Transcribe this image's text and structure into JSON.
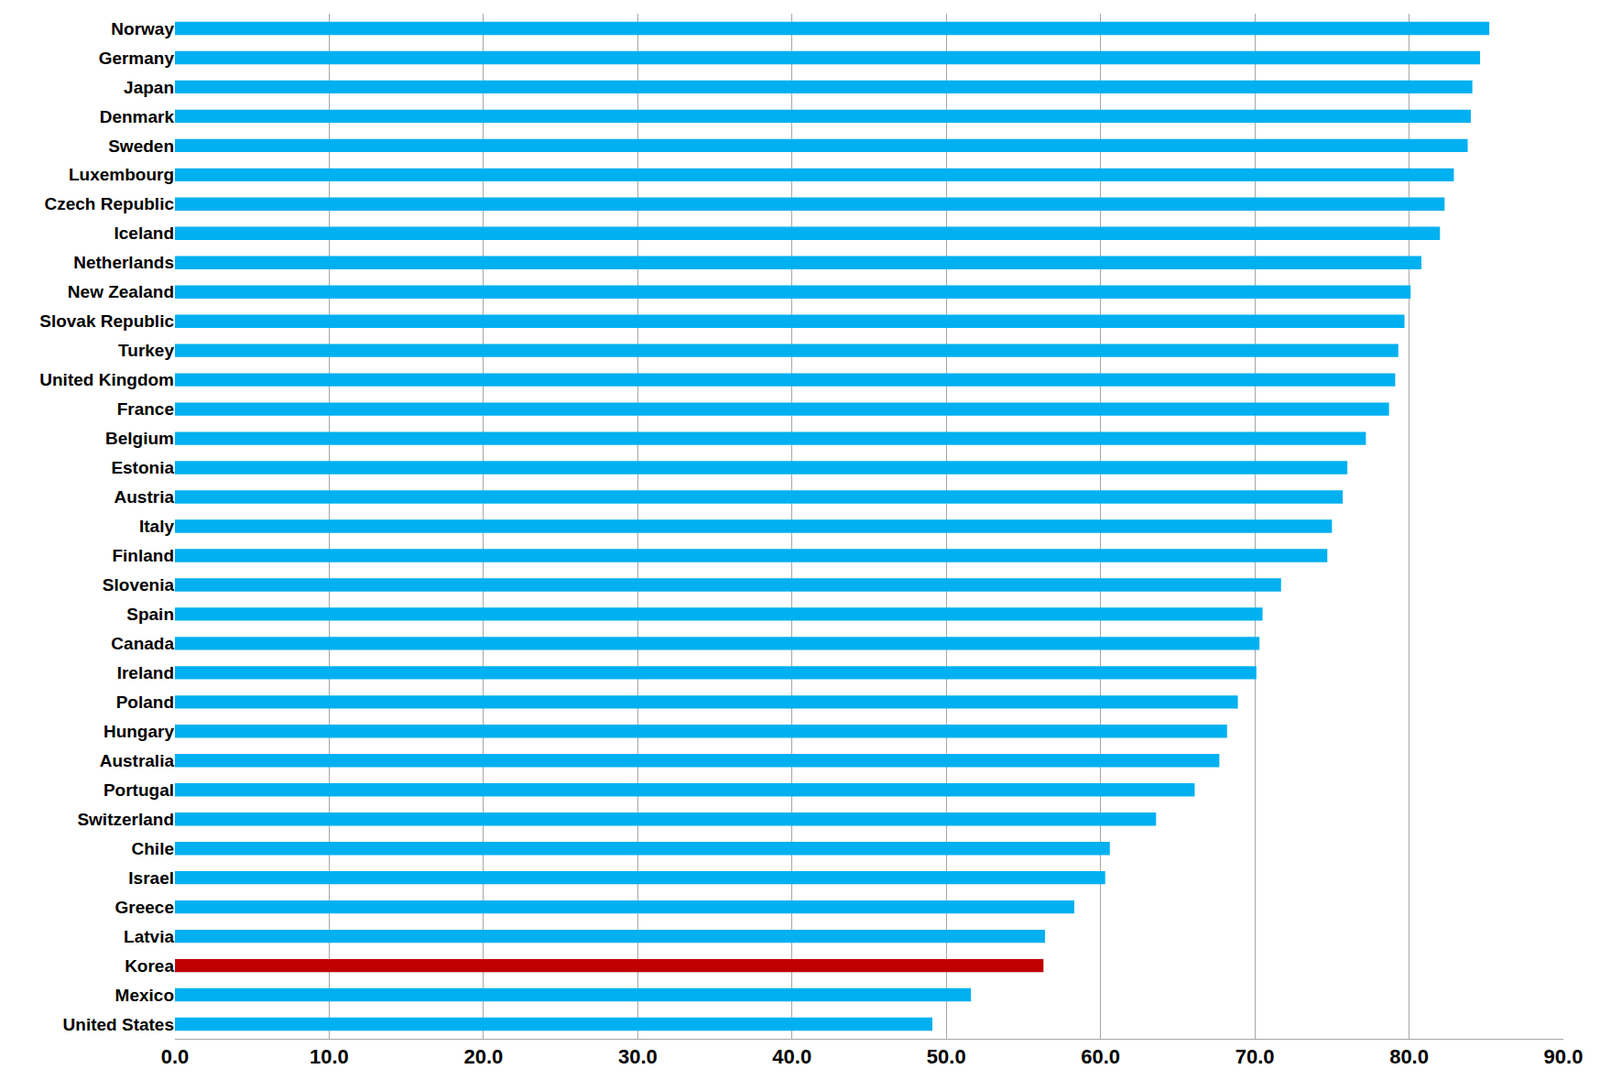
{
  "chart_data": {
    "type": "bar",
    "orientation": "horizontal",
    "categories": [
      "Norway",
      "Germany",
      "Japan",
      "Denmark",
      "Sweden",
      "Luxembourg",
      "Czech Republic",
      "Iceland",
      "Netherlands",
      "New Zealand",
      "Slovak Republic",
      "Turkey",
      "United Kingdom",
      "France",
      "Belgium",
      "Estonia",
      "Austria",
      "Italy",
      "Finland",
      "Slovenia",
      "Spain",
      "Canada",
      "Ireland",
      "Poland",
      "Hungary",
      "Australia",
      "Portugal",
      "Switzerland",
      "Chile",
      "Israel",
      "Greece",
      "Latvia",
      "Korea",
      "Mexico",
      "United States"
    ],
    "values": [
      85.2,
      84.6,
      84.1,
      84.0,
      83.8,
      82.9,
      82.3,
      82.0,
      80.8,
      80.1,
      79.7,
      79.3,
      79.1,
      78.7,
      77.2,
      76.0,
      75.7,
      75.0,
      74.7,
      71.7,
      70.5,
      70.3,
      70.1,
      68.9,
      68.2,
      67.7,
      66.1,
      63.6,
      60.6,
      60.3,
      58.3,
      56.4,
      56.3,
      51.6,
      49.1
    ],
    "colors": [
      "#00b0f0",
      "#00b0f0",
      "#00b0f0",
      "#00b0f0",
      "#00b0f0",
      "#00b0f0",
      "#00b0f0",
      "#00b0f0",
      "#00b0f0",
      "#00b0f0",
      "#00b0f0",
      "#00b0f0",
      "#00b0f0",
      "#00b0f0",
      "#00b0f0",
      "#00b0f0",
      "#00b0f0",
      "#00b0f0",
      "#00b0f0",
      "#00b0f0",
      "#00b0f0",
      "#00b0f0",
      "#00b0f0",
      "#00b0f0",
      "#00b0f0",
      "#00b0f0",
      "#00b0f0",
      "#00b0f0",
      "#00b0f0",
      "#00b0f0",
      "#00b0f0",
      "#00b0f0",
      "#c00000",
      "#00b0f0",
      "#00b0f0"
    ],
    "xlim": [
      0,
      90
    ],
    "xticks": [
      {
        "value": 0,
        "label": "0.0"
      },
      {
        "value": 10,
        "label": "10.0"
      },
      {
        "value": 20,
        "label": "20.0"
      },
      {
        "value": 30,
        "label": "30.0"
      },
      {
        "value": 40,
        "label": "40.0"
      },
      {
        "value": 50,
        "label": "50.0"
      },
      {
        "value": 60,
        "label": "60.0"
      },
      {
        "value": 70,
        "label": "70.0"
      },
      {
        "value": 80,
        "label": "80.0"
      },
      {
        "value": 90,
        "label": "90.0"
      }
    ],
    "grid": true
  }
}
